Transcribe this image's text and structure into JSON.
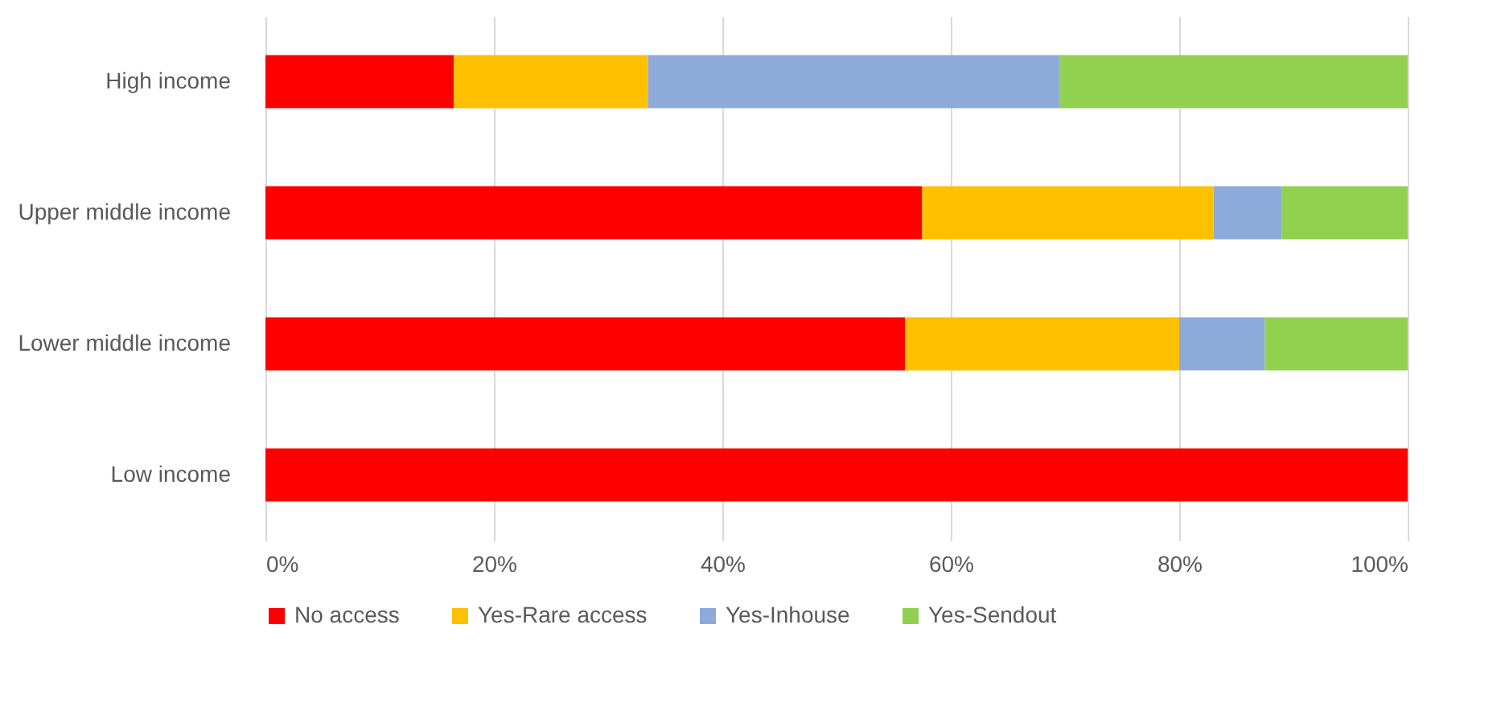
{
  "chart_data": {
    "type": "bar",
    "orientation": "horizontal",
    "stacked": true,
    "categories": [
      "High income",
      "Upper middle income",
      "Lower middle income",
      "Low income"
    ],
    "series": [
      {
        "name": "No access",
        "color": "#ff0000",
        "values": [
          16.5,
          57.5,
          56,
          100
        ]
      },
      {
        "name": "Yes-Rare access",
        "color": "#ffc000",
        "values": [
          17,
          25.5,
          24,
          0
        ]
      },
      {
        "name": "Yes-Inhouse",
        "color": "#8eaadb",
        "values": [
          36,
          6,
          7.5,
          0
        ]
      },
      {
        "name": "Yes-Sendout",
        "color": "#92d050",
        "values": [
          30.5,
          11,
          12.5,
          0
        ]
      }
    ],
    "xlim": [
      0,
      100
    ],
    "xticks": [
      {
        "value": 0,
        "label": "0%"
      },
      {
        "value": 20,
        "label": "20%"
      },
      {
        "value": 40,
        "label": "40%"
      },
      {
        "value": 60,
        "label": "60%"
      },
      {
        "value": 80,
        "label": "80%"
      },
      {
        "value": 100,
        "label": "100%"
      }
    ],
    "grid": "x",
    "legend": "bottom"
  }
}
